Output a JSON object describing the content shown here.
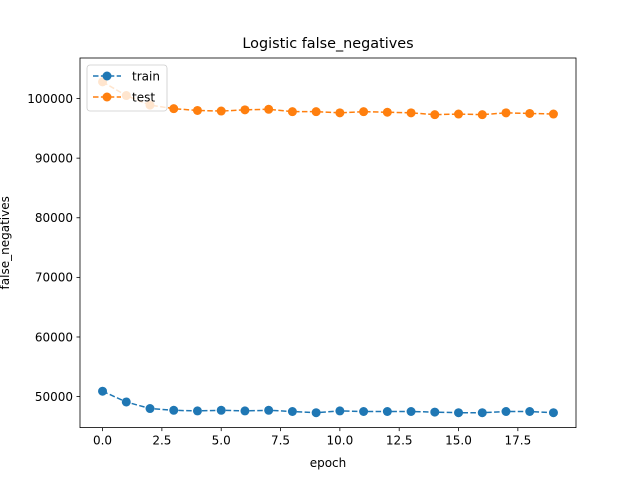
{
  "chart_data": {
    "type": "line",
    "title": "Logistic false_negatives",
    "xlabel": "epoch",
    "ylabel": "false_negatives",
    "xlim": [
      -0.95,
      19.95
    ],
    "ylim": [
      44800,
      106800
    ],
    "xticks": [
      0.0,
      2.5,
      5.0,
      7.5,
      10.0,
      12.5,
      15.0,
      17.5
    ],
    "xtick_labels": [
      "0.0",
      "2.5",
      "5.0",
      "7.5",
      "10.0",
      "12.5",
      "15.0",
      "17.5"
    ],
    "yticks": [
      50000,
      60000,
      70000,
      80000,
      90000,
      100000
    ],
    "ytick_labels": [
      "50000",
      "60000",
      "70000",
      "80000",
      "90000",
      "100000"
    ],
    "grid": false,
    "legend_position": "top-left",
    "x": [
      0,
      1,
      2,
      3,
      4,
      5,
      6,
      7,
      8,
      9,
      10,
      11,
      12,
      13,
      14,
      15,
      16,
      17,
      18,
      19
    ],
    "series": [
      {
        "name": "train",
        "color": "#1f77b4",
        "values": [
          50900,
          49100,
          48000,
          47700,
          47600,
          47700,
          47600,
          47700,
          47500,
          47300,
          47600,
          47500,
          47500,
          47500,
          47400,
          47300,
          47300,
          47500,
          47500,
          47300
        ]
      },
      {
        "name": "test",
        "color": "#ff7f0e",
        "values": [
          102800,
          100500,
          98900,
          98300,
          98000,
          97900,
          98100,
          98200,
          97800,
          97800,
          97600,
          97800,
          97700,
          97600,
          97300,
          97400,
          97300,
          97600,
          97500,
          97400
        ]
      }
    ]
  }
}
